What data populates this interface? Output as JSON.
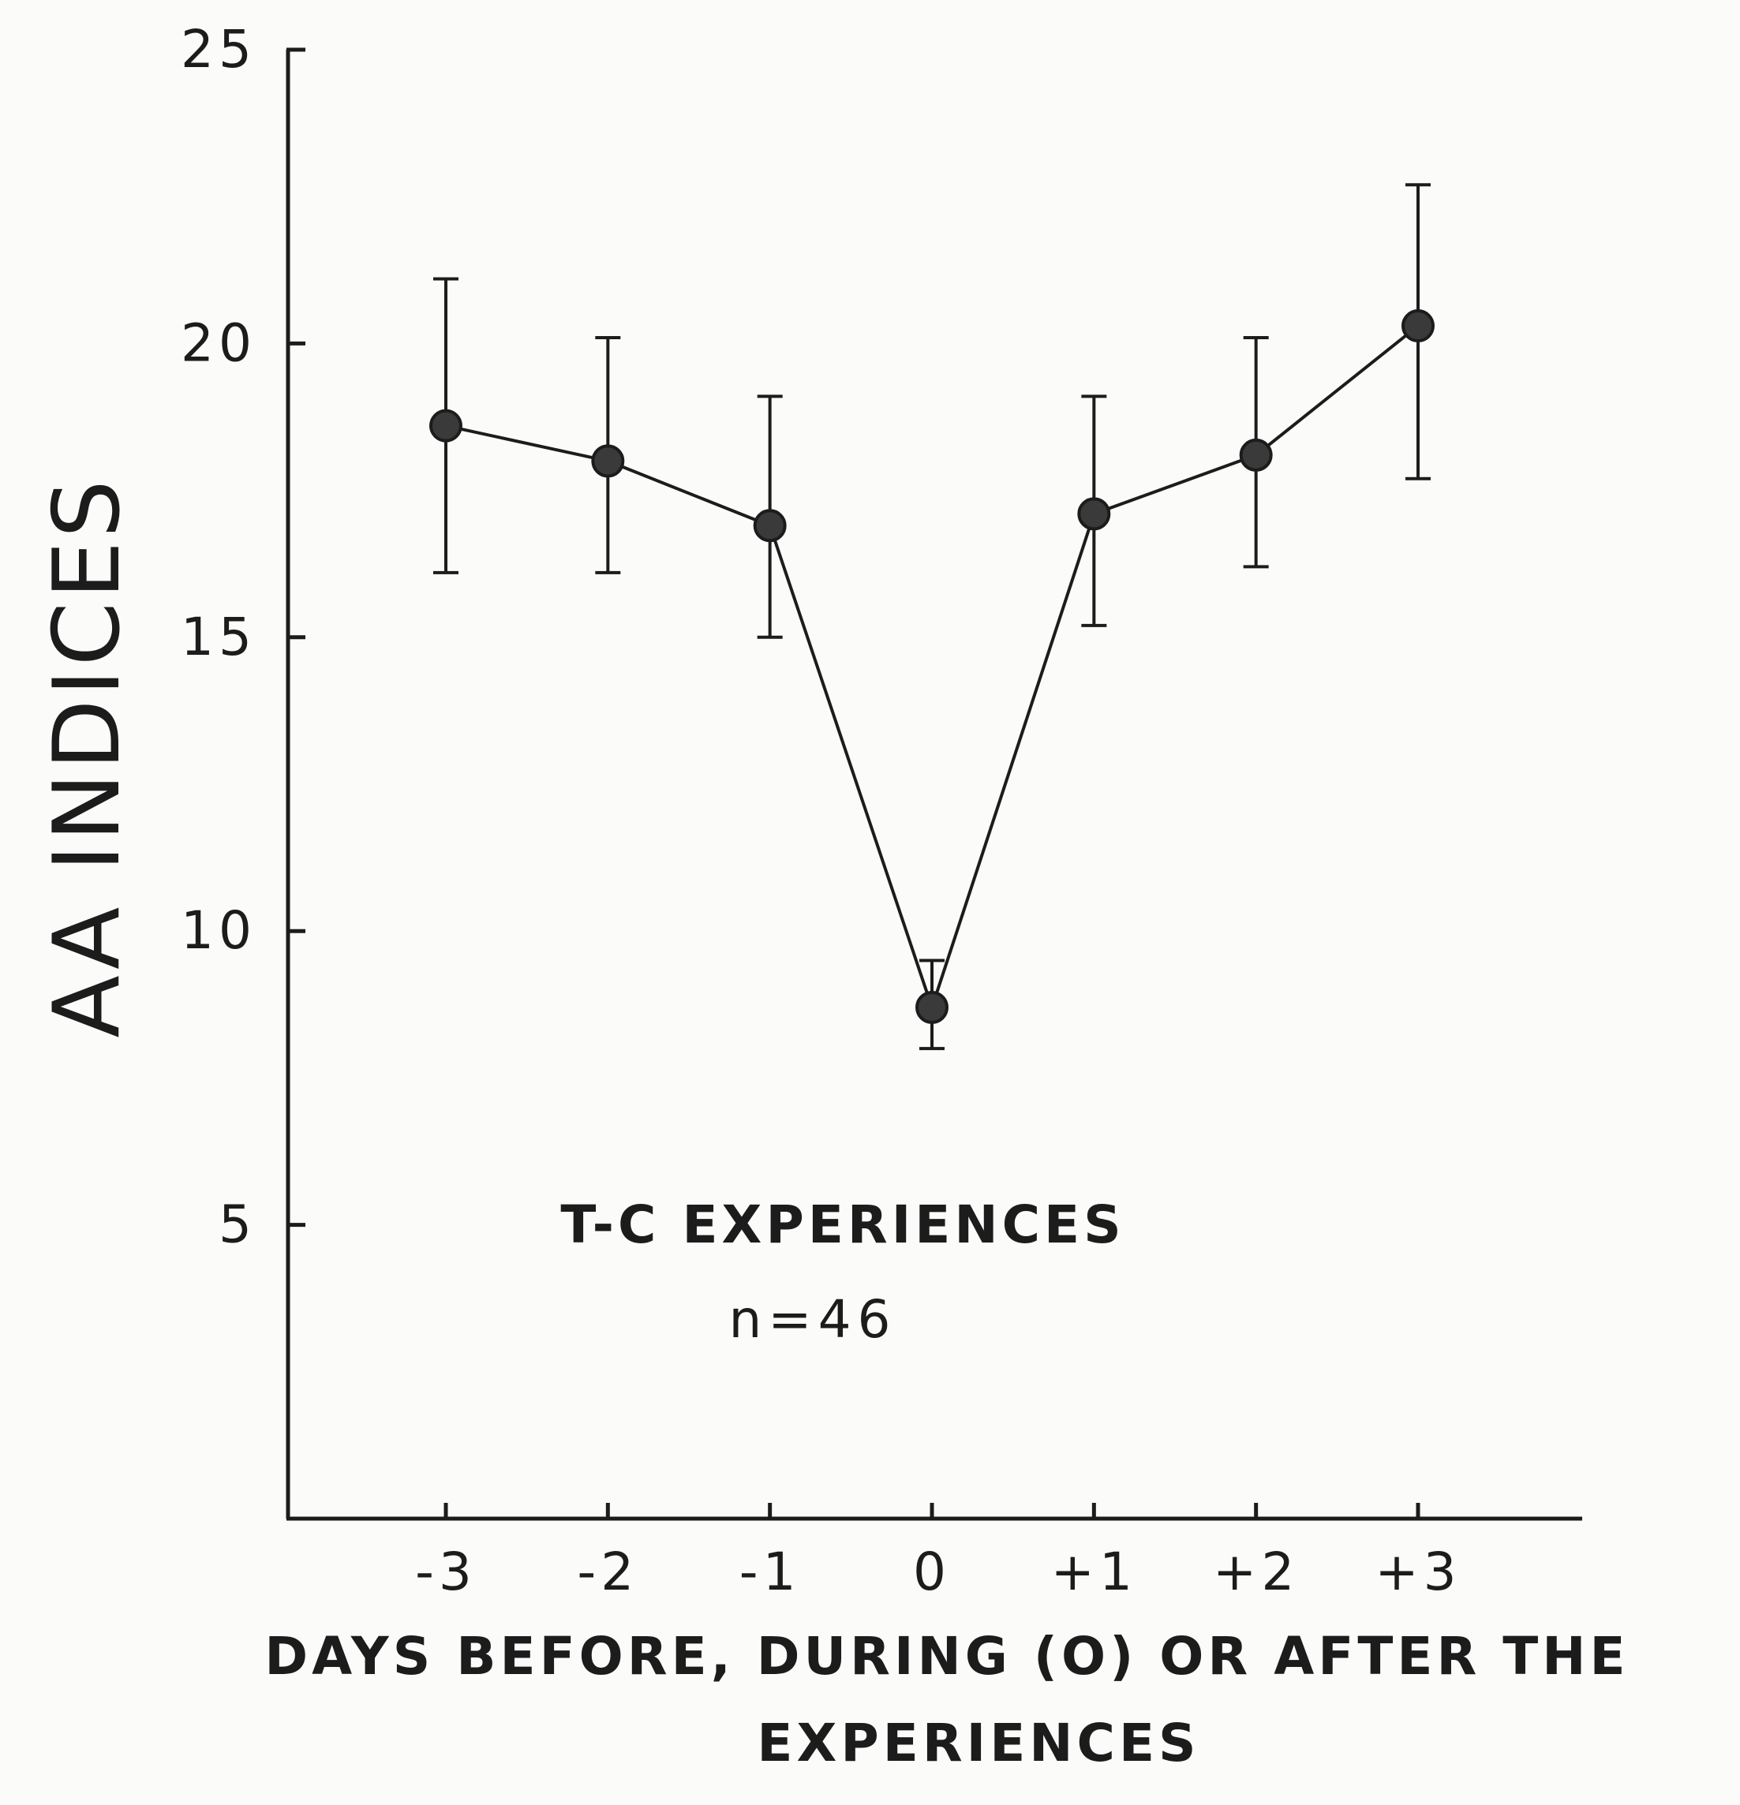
{
  "chart_data": {
    "type": "line",
    "x": [
      -3,
      -2,
      -1,
      0,
      1,
      2,
      3
    ],
    "x_tick_labels": [
      "-3",
      "-2",
      "-1",
      "0",
      "+1",
      "+2",
      "+3"
    ],
    "series": [
      {
        "values": [
          18.6,
          18.0,
          16.9,
          8.7,
          17.1,
          18.1,
          20.3
        ],
        "error_upper": [
          21.1,
          20.1,
          19.1,
          9.5,
          19.1,
          20.1,
          22.7
        ],
        "error_lower": [
          16.1,
          16.1,
          15.0,
          8.0,
          15.2,
          16.2,
          17.7
        ]
      }
    ],
    "y_ticks": [
      5,
      10,
      15,
      20,
      25
    ],
    "ylim": [
      0,
      25
    ],
    "xlim": [
      -4,
      4
    ],
    "xlabel": "DAYS BEFORE, DURING (O) OR AFTER THE EXPERIENCES",
    "xlabel_lines": [
      "DAYS BEFORE, DURING (O) OR AFTER THE",
      "EXPERIENCES"
    ],
    "ylabel": "AA INDICES",
    "annotation": "T-C EXPERIENCES",
    "annotation_n": "n=46",
    "grid": false,
    "color": "#1c1c1c"
  }
}
